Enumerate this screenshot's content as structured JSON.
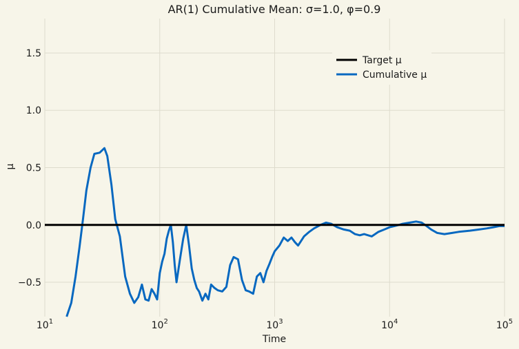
{
  "chart_data": {
    "type": "line",
    "title": "AR(1) Cumulative Mean: σ=1.0, φ=0.9",
    "xlabel": "Time",
    "ylabel": "μ",
    "xscale": "log",
    "xlim": [
      10,
      100000
    ],
    "ylim": [
      -0.8,
      1.8
    ],
    "grid": true,
    "legend_position": "upper-right",
    "xticks": [
      {
        "value": 10,
        "base": "10",
        "exp": "1"
      },
      {
        "value": 100,
        "base": "10",
        "exp": "2"
      },
      {
        "value": 1000,
        "base": "10",
        "exp": "3"
      },
      {
        "value": 10000,
        "base": "10",
        "exp": "4"
      },
      {
        "value": 100000,
        "base": "10",
        "exp": "5"
      }
    ],
    "yticks": [
      {
        "value": -0.5,
        "label": "−0.5"
      },
      {
        "value": 0.0,
        "label": "0.0"
      },
      {
        "value": 0.5,
        "label": "0.5"
      },
      {
        "value": 1.0,
        "label": "1.0"
      },
      {
        "value": 1.5,
        "label": "1.5"
      }
    ],
    "series": [
      {
        "name": "Target μ",
        "color": "#000000",
        "x": [
          10,
          100000
        ],
        "y": [
          0,
          0
        ]
      },
      {
        "name": "Cumulative μ",
        "color": "#0868c0",
        "x": [
          15.5,
          17,
          18.5,
          20,
          21.5,
          23,
          25,
          27,
          30,
          33,
          35,
          38,
          41,
          45,
          50,
          55,
          60,
          65,
          70,
          75,
          80,
          85,
          90,
          95,
          100,
          105,
          110,
          115,
          120,
          125,
          130,
          135,
          140,
          150,
          160,
          170,
          180,
          190,
          200,
          210,
          220,
          235,
          250,
          265,
          280,
          300,
          320,
          350,
          380,
          410,
          440,
          480,
          520,
          560,
          600,
          650,
          700,
          750,
          800,
          850,
          900,
          950,
          1000,
          1100,
          1200,
          1300,
          1400,
          1500,
          1600,
          1800,
          2000,
          2200,
          2500,
          2800,
          3100,
          3500,
          4000,
          4500,
          5000,
          5500,
          6000,
          7000,
          8000,
          9000,
          10000,
          11000,
          12000,
          13000,
          15000,
          17000,
          19000,
          21000,
          23000,
          26000,
          30000,
          35000,
          40000,
          50000,
          60000,
          70000,
          80000,
          90000,
          100000
        ],
        "y": [
          -0.8,
          -0.68,
          -0.45,
          -0.2,
          0.05,
          0.3,
          0.5,
          0.62,
          0.63,
          0.67,
          0.6,
          0.35,
          0.05,
          -0.1,
          -0.45,
          -0.6,
          -0.68,
          -0.63,
          -0.52,
          -0.65,
          -0.66,
          -0.56,
          -0.6,
          -0.65,
          -0.42,
          -0.32,
          -0.25,
          -0.12,
          -0.05,
          0.0,
          -0.15,
          -0.35,
          -0.5,
          -0.3,
          -0.12,
          0.0,
          -0.18,
          -0.38,
          -0.48,
          -0.55,
          -0.58,
          -0.66,
          -0.6,
          -0.65,
          -0.52,
          -0.55,
          -0.57,
          -0.58,
          -0.54,
          -0.35,
          -0.28,
          -0.3,
          -0.48,
          -0.57,
          -0.58,
          -0.6,
          -0.45,
          -0.42,
          -0.5,
          -0.4,
          -0.34,
          -0.28,
          -0.23,
          -0.18,
          -0.11,
          -0.14,
          -0.11,
          -0.15,
          -0.18,
          -0.1,
          -0.06,
          -0.03,
          0.0,
          0.02,
          0.01,
          -0.02,
          -0.04,
          -0.05,
          -0.08,
          -0.09,
          -0.08,
          -0.1,
          -0.06,
          -0.04,
          -0.02,
          -0.01,
          0.0,
          0.01,
          0.02,
          0.03,
          0.02,
          -0.01,
          -0.04,
          -0.07,
          -0.08,
          -0.07,
          -0.06,
          -0.05,
          -0.04,
          -0.03,
          -0.02,
          -0.01,
          -0.01
        ]
      }
    ]
  }
}
